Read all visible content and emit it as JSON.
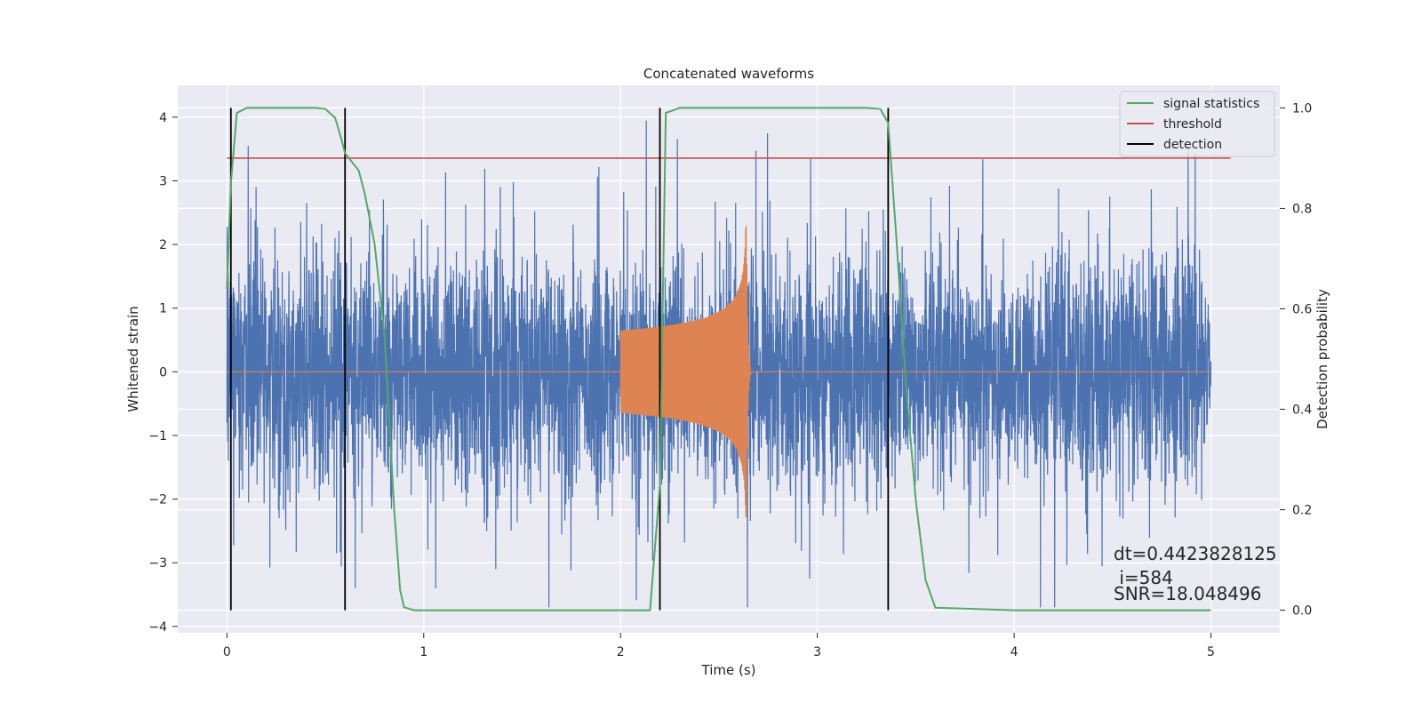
{
  "chart_data": {
    "type": "line",
    "title": "Concatenated waveforms",
    "xlabel": "Time (s)",
    "ylabel": "Whitened strain",
    "ylabel_right": "Detection probability",
    "xlim": [
      -0.25,
      5.35
    ],
    "ylim": [
      -4.1,
      4.5
    ],
    "ylim_right": [
      -0.045,
      1.045
    ],
    "x_ticks": [
      0,
      1,
      2,
      3,
      4,
      5
    ],
    "y_ticks": [
      -4,
      -3,
      -2,
      -1,
      0,
      1,
      2,
      3,
      4
    ],
    "y_ticks_right": [
      0.0,
      0.2,
      0.4,
      0.6,
      0.8,
      1.0
    ],
    "x_tick_labels": [
      "0",
      "1",
      "2",
      "3",
      "4",
      "5"
    ],
    "y_tick_labels": [
      "−4",
      "−3",
      "−2",
      "−1",
      "0",
      "1",
      "2",
      "3",
      "4"
    ],
    "y_tick_labels_right": [
      "0.0",
      "0.2",
      "0.4",
      "0.6",
      "0.8",
      "1.0"
    ],
    "grid": true,
    "legend_position": "top-right",
    "colors": {
      "background": "#eaeaf2",
      "grid": "#ffffff",
      "noise": "#4c72b0",
      "injection": "#dd8452",
      "statistic": "#55a868",
      "threshold": "#c44e52",
      "detection": "#000000"
    },
    "legend": [
      {
        "label": "signal statistics",
        "color": "#55a868"
      },
      {
        "label": "threshold",
        "color": "#c44e52"
      },
      {
        "label": "detection",
        "color": "#000000"
      }
    ],
    "series": [
      {
        "name": "signal statistics",
        "axis": "right",
        "x": [
          0.0,
          0.02,
          0.05,
          0.1,
          0.2,
          0.45,
          0.5,
          0.55,
          0.58,
          0.6,
          0.63,
          0.67,
          0.7,
          0.75,
          0.8,
          0.85,
          0.88,
          0.9,
          0.95,
          1.2,
          1.6,
          2.0,
          2.15,
          2.2,
          2.23,
          2.3,
          2.6,
          3.25,
          3.32,
          3.36,
          3.4,
          3.45,
          3.5,
          3.55,
          3.6,
          4.0,
          5.0
        ],
        "values": [
          0.64,
          0.85,
          0.99,
          1.0,
          1.0,
          1.0,
          0.998,
          0.98,
          0.94,
          0.91,
          0.895,
          0.875,
          0.83,
          0.73,
          0.55,
          0.2,
          0.04,
          0.006,
          0.0,
          0.0,
          0.0,
          0.0,
          0.0,
          0.25,
          0.99,
          1.0,
          1.0,
          1.0,
          0.998,
          0.97,
          0.75,
          0.45,
          0.22,
          0.06,
          0.005,
          0.0,
          0.0
        ]
      },
      {
        "name": "threshold",
        "axis": "right",
        "x": [
          0.0,
          5.1
        ],
        "values": [
          0.9,
          0.9
        ]
      }
    ],
    "noise": {
      "x_range": [
        0.0,
        5.0
      ],
      "typical_amplitude": 1.7,
      "max_value": 4.15,
      "min_value": -3.7
    },
    "injection": {
      "x_range": [
        2.0,
        2.66
      ],
      "start_amplitude": 0.65,
      "peak_time": 2.64,
      "peak_max": 2.35,
      "peak_min": -2.5
    },
    "detections": [
      0.02,
      0.6,
      2.2,
      3.36
    ],
    "annotations": [
      "dt=0.4423828125",
      " i=584",
      "SNR=18.048496"
    ]
  }
}
